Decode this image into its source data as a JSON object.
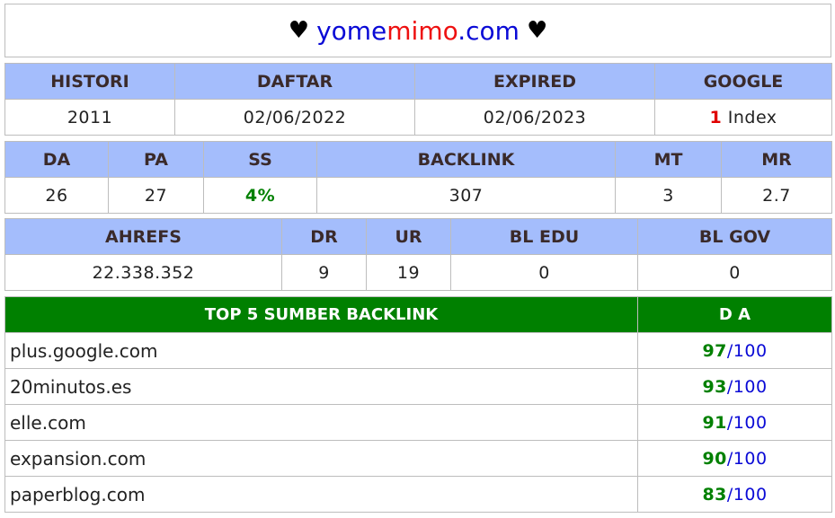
{
  "header": {
    "heart_left": "♥",
    "heart_right": "♥",
    "domain_part1": "yome",
    "domain_part2": "mimo",
    "domain_part3": ".com"
  },
  "row1": {
    "headers": [
      "HISTORI",
      "DAFTAR",
      "EXPIRED",
      "GOOGLE"
    ],
    "histori": "2011",
    "daftar": "02/06/2022",
    "expired": "02/06/2023",
    "google_count": "1",
    "google_label": "Index"
  },
  "row2": {
    "headers": [
      "DA",
      "PA",
      "SS",
      "BACKLINK",
      "MT",
      "MR"
    ],
    "da": "26",
    "pa": "27",
    "ss": "4%",
    "backlink": "307",
    "mt": "3",
    "mr": "2.7"
  },
  "row3": {
    "headers": [
      "AHREFS",
      "DR",
      "UR",
      "BL EDU",
      "BL GOV"
    ],
    "ahrefs": "22.338.352",
    "dr": "9",
    "ur": "19",
    "bl_edu": "0",
    "bl_gov": "0"
  },
  "top_backlinks": {
    "header_title": "TOP 5 SUMBER BACKLINK",
    "header_da": "D A",
    "separator": "/",
    "max": "100",
    "items": [
      {
        "site": "plus.google.com",
        "da": "97"
      },
      {
        "site": "20minutos.es",
        "da": "93"
      },
      {
        "site": "elle.com",
        "da": "91"
      },
      {
        "site": "expansion.com",
        "da": "90"
      },
      {
        "site": "paperblog.com",
        "da": "83"
      }
    ]
  },
  "colors": {
    "header_bg": "#a4bdfc",
    "top_header_bg": "#008000",
    "domain_blue": "#0a0ad6",
    "domain_red": "#ee1010"
  }
}
